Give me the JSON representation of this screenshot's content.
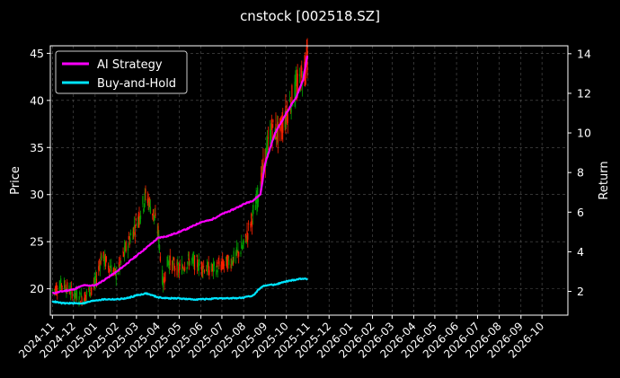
{
  "chart_data": {
    "type": "line",
    "title": "cnstock [002518.SZ]",
    "ylabel_left": "Price",
    "ylabel_right": "Return",
    "xlim": [
      "2024-10-29",
      "2026-11-07"
    ],
    "ylim_left": [
      17.2,
      45.8
    ],
    "ylim_right": [
      0.8,
      14.4
    ],
    "grid": true,
    "legend_position": "upper-left",
    "x_ticks": [
      "2024-11",
      "2024-12",
      "2025-01",
      "2025-02",
      "2025-03",
      "2025-04",
      "2025-05",
      "2025-06",
      "2025-07",
      "2025-08",
      "2025-09",
      "2025-10",
      "2025-11",
      "2025-12",
      "2026-01",
      "2026-02",
      "2026-03",
      "2026-04",
      "2026-05",
      "2026-06",
      "2026-07",
      "2026-08",
      "2026-09",
      "2026-10"
    ],
    "y_ticks_left": [
      20,
      25,
      30,
      35,
      40,
      45
    ],
    "y_ticks_right": [
      2,
      4,
      6,
      8,
      10,
      12,
      14
    ],
    "candlestick_colors": {
      "up": "#00a000",
      "down": "#ff2200"
    },
    "price_series": {
      "name": "",
      "x": [
        "2024-11-01",
        "2024-11-15",
        "2024-12-01",
        "2024-12-15",
        "2025-01-01",
        "2025-01-10",
        "2025-01-20",
        "2025-02-01",
        "2025-02-15",
        "2025-03-01",
        "2025-03-15",
        "2025-03-25",
        "2025-04-01",
        "2025-04-08",
        "2025-04-15",
        "2025-05-01",
        "2025-05-15",
        "2025-06-01",
        "2025-06-15",
        "2025-07-01",
        "2025-07-15",
        "2025-08-01",
        "2025-08-15",
        "2025-08-25",
        "2025-09-01",
        "2025-09-10",
        "2025-09-20",
        "2025-10-01",
        "2025-10-10",
        "2025-10-20",
        "2025-10-31"
      ],
      "values": [
        19.8,
        20.5,
        19.5,
        19.0,
        20.5,
        23.5,
        22.5,
        21.5,
        24.5,
        27.0,
        30.0,
        28.0,
        26.0,
        20.5,
        23.0,
        22.0,
        23.0,
        22.5,
        22.0,
        22.5,
        23.0,
        24.5,
        28.0,
        31.0,
        34.0,
        37.0,
        36.5,
        38.5,
        40.5,
        42.0,
        44.5
      ]
    },
    "series": [
      {
        "name": "AI Strategy",
        "color": "#ff00ff",
        "x": [
          "2024-11-01",
          "2024-11-15",
          "2024-12-01",
          "2024-12-15",
          "2025-01-01",
          "2025-01-15",
          "2025-02-01",
          "2025-02-15",
          "2025-03-01",
          "2025-03-15",
          "2025-04-01",
          "2025-04-15",
          "2025-05-01",
          "2025-05-15",
          "2025-06-01",
          "2025-06-15",
          "2025-07-01",
          "2025-07-15",
          "2025-08-01",
          "2025-08-15",
          "2025-08-25",
          "2025-09-01",
          "2025-09-15",
          "2025-10-01",
          "2025-10-15",
          "2025-10-25",
          "2025-10-31"
        ],
        "values": [
          1.9,
          2.0,
          2.1,
          2.3,
          2.3,
          2.6,
          3.0,
          3.4,
          3.8,
          4.2,
          4.7,
          4.8,
          5.0,
          5.2,
          5.5,
          5.6,
          5.9,
          6.1,
          6.4,
          6.6,
          6.9,
          8.5,
          10.0,
          11.0,
          11.8,
          12.7,
          13.9
        ]
      },
      {
        "name": "Buy-and-Hold",
        "color": "#00e5ff",
        "x": [
          "2024-11-01",
          "2024-11-15",
          "2024-12-01",
          "2024-12-15",
          "2025-01-01",
          "2025-01-15",
          "2025-02-01",
          "2025-02-15",
          "2025-03-01",
          "2025-03-15",
          "2025-04-01",
          "2025-04-15",
          "2025-05-01",
          "2025-05-15",
          "2025-06-01",
          "2025-06-15",
          "2025-07-01",
          "2025-07-15",
          "2025-08-01",
          "2025-08-15",
          "2025-08-25",
          "2025-09-01",
          "2025-09-15",
          "2025-10-01",
          "2025-10-15",
          "2025-10-25",
          "2025-10-31"
        ],
        "values": [
          1.5,
          1.4,
          1.4,
          1.4,
          1.55,
          1.6,
          1.6,
          1.65,
          1.8,
          1.9,
          1.7,
          1.65,
          1.65,
          1.6,
          1.6,
          1.62,
          1.65,
          1.65,
          1.68,
          1.8,
          2.2,
          2.3,
          2.35,
          2.5,
          2.6,
          2.65,
          2.6
        ]
      }
    ]
  }
}
